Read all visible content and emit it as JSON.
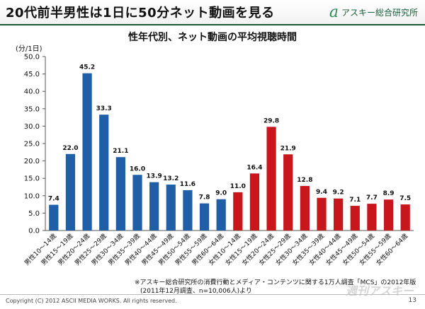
{
  "header": {
    "headline": "20代前半男性は1日に50分ネット動画を見る",
    "brand_mark": "a",
    "brand_name": "アスキー総合研究所"
  },
  "chart_data": {
    "type": "bar",
    "title": "性年代別、ネット動画の平均視聴時間",
    "ylabel": "(分/1日)",
    "ylim": [
      0,
      50
    ],
    "yticks": [
      "0.0",
      "5.0",
      "10.0",
      "15.0",
      "20.0",
      "25.0",
      "30.0",
      "35.0",
      "40.0",
      "45.0",
      "50.0"
    ],
    "categories": [
      "男性10～14歳",
      "男性15～19歳",
      "男性20～24歳",
      "男性25～29歳",
      "男性30～34歳",
      "男性35～39歳",
      "男性40～44歳",
      "男性45～49歳",
      "男性50～54歳",
      "男性55～59歳",
      "男性60～64歳",
      "女性10～14歳",
      "女性15～19歳",
      "女性20～24歳",
      "女性25～29歳",
      "女性30～34歳",
      "女性35～39歳",
      "女性40～44歳",
      "女性45～49歳",
      "女性50～54歳",
      "女性55～59歳",
      "女性60～64歳"
    ],
    "values": [
      7.4,
      22.0,
      45.2,
      33.3,
      21.1,
      16.0,
      13.9,
      13.2,
      11.6,
      7.8,
      9.0,
      11.0,
      16.4,
      29.8,
      21.9,
      12.8,
      9.4,
      9.2,
      7.1,
      7.7,
      8.9,
      7.5
    ],
    "value_labels": [
      "7.4",
      "22.0",
      "45.2",
      "33.3",
      "21.1",
      "16.0",
      "13.9",
      "13.2",
      "11.6",
      "7.8",
      "9.0",
      "11.0",
      "16.4",
      "29.8",
      "21.9",
      "12.8",
      "9.4",
      "9.2",
      "7.1",
      "7.7",
      "8.9",
      "7.5"
    ],
    "male_color": "#1f5fa8",
    "female_color": "#c8161d",
    "male_count": 11
  },
  "notes": {
    "line1": "※アスキー総合研究所の消費行動とメディア・コンテンツに関する1万人調査「MCS」の2012年版",
    "line2": "(2011年12月調査、n=10,006人)より"
  },
  "footer": {
    "copyright": "Copyright (C) 2012 ASCII MEDIA WORKS. All rights reserved.",
    "page": "13",
    "watermark": "週刊アスキー"
  }
}
